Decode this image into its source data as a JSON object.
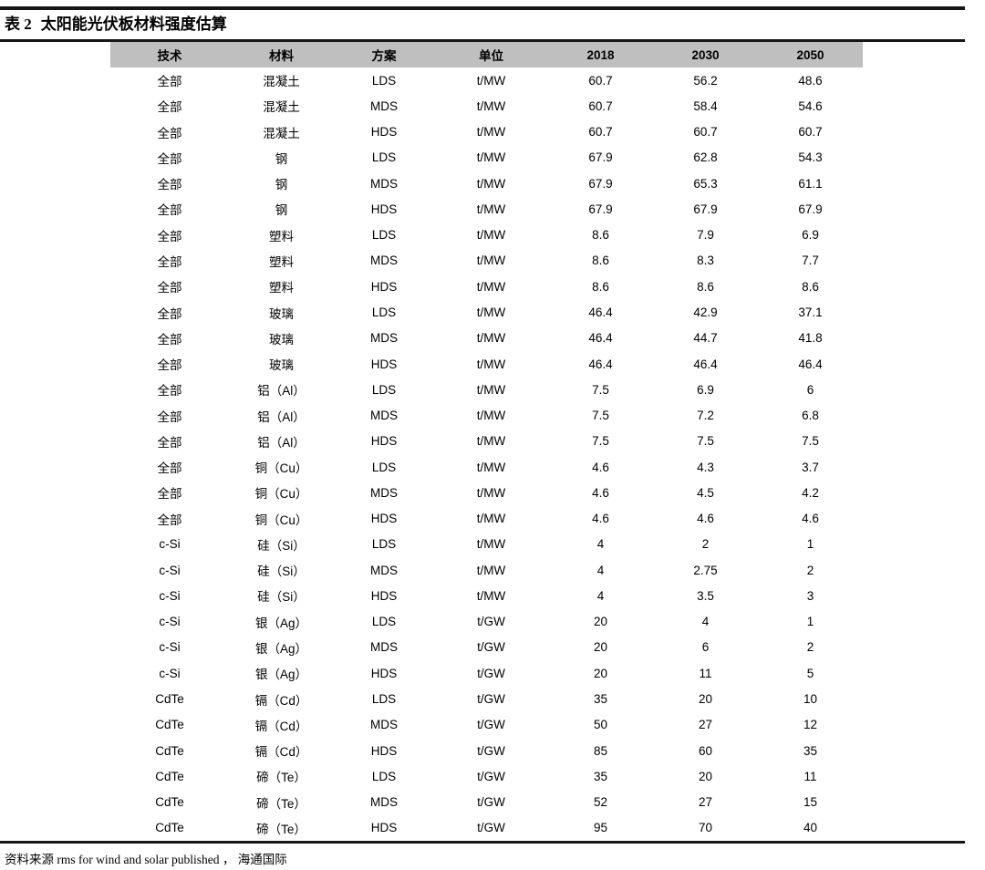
{
  "title": {
    "label": "表 2",
    "text": "太阳能光伏板材料强度估算"
  },
  "table": {
    "columns": [
      "技术",
      "材料",
      "方案",
      "单位",
      "2018",
      "2030",
      "2050"
    ],
    "rows": [
      [
        "全部",
        "混凝土",
        "LDS",
        "t/MW",
        "60.7",
        "56.2",
        "48.6"
      ],
      [
        "全部",
        "混凝土",
        "MDS",
        "t/MW",
        "60.7",
        "58.4",
        "54.6"
      ],
      [
        "全部",
        "混凝土",
        "HDS",
        "t/MW",
        "60.7",
        "60.7",
        "60.7"
      ],
      [
        "全部",
        "钢",
        "LDS",
        "t/MW",
        "67.9",
        "62.8",
        "54.3"
      ],
      [
        "全部",
        "钢",
        "MDS",
        "t/MW",
        "67.9",
        "65.3",
        "61.1"
      ],
      [
        "全部",
        "钢",
        "HDS",
        "t/MW",
        "67.9",
        "67.9",
        "67.9"
      ],
      [
        "全部",
        "塑料",
        "LDS",
        "t/MW",
        "8.6",
        "7.9",
        "6.9"
      ],
      [
        "全部",
        "塑料",
        "MDS",
        "t/MW",
        "8.6",
        "8.3",
        "7.7"
      ],
      [
        "全部",
        "塑料",
        "HDS",
        "t/MW",
        "8.6",
        "8.6",
        "8.6"
      ],
      [
        "全部",
        "玻璃",
        "LDS",
        "t/MW",
        "46.4",
        "42.9",
        "37.1"
      ],
      [
        "全部",
        "玻璃",
        "MDS",
        "t/MW",
        "46.4",
        "44.7",
        "41.8"
      ],
      [
        "全部",
        "玻璃",
        "HDS",
        "t/MW",
        "46.4",
        "46.4",
        "46.4"
      ],
      [
        "全部",
        "铝（Al）",
        "LDS",
        "t/MW",
        "7.5",
        "6.9",
        "6"
      ],
      [
        "全部",
        "铝（Al）",
        "MDS",
        "t/MW",
        "7.5",
        "7.2",
        "6.8"
      ],
      [
        "全部",
        "铝（Al）",
        "HDS",
        "t/MW",
        "7.5",
        "7.5",
        "7.5"
      ],
      [
        "全部",
        "铜（Cu）",
        "LDS",
        "t/MW",
        "4.6",
        "4.3",
        "3.7"
      ],
      [
        "全部",
        "铜（Cu）",
        "MDS",
        "t/MW",
        "4.6",
        "4.5",
        "4.2"
      ],
      [
        "全部",
        "铜（Cu）",
        "HDS",
        "t/MW",
        "4.6",
        "4.6",
        "4.6"
      ],
      [
        "c-Si",
        "硅（Si）",
        "LDS",
        "t/MW",
        "4",
        "2",
        "1"
      ],
      [
        "c-Si",
        "硅（Si）",
        "MDS",
        "t/MW",
        "4",
        "2.75",
        "2"
      ],
      [
        "c-Si",
        "硅（Si）",
        "HDS",
        "t/MW",
        "4",
        "3.5",
        "3"
      ],
      [
        "c-Si",
        "银（Ag）",
        "LDS",
        "t/GW",
        "20",
        "4",
        "1"
      ],
      [
        "c-Si",
        "银（Ag）",
        "MDS",
        "t/GW",
        "20",
        "6",
        "2"
      ],
      [
        "c-Si",
        "银（Ag）",
        "HDS",
        "t/GW",
        "20",
        "11",
        "5"
      ],
      [
        "CdTe",
        "镉（Cd）",
        "LDS",
        "t/GW",
        "35",
        "20",
        "10"
      ],
      [
        "CdTe",
        "镉（Cd）",
        "MDS",
        "t/GW",
        "50",
        "27",
        "12"
      ],
      [
        "CdTe",
        "镉（Cd）",
        "HDS",
        "t/GW",
        "85",
        "60",
        "35"
      ],
      [
        "CdTe",
        "碲（Te）",
        "LDS",
        "t/GW",
        "35",
        "20",
        "11"
      ],
      [
        "CdTe",
        "碲（Te）",
        "MDS",
        "t/GW",
        "52",
        "27",
        "15"
      ],
      [
        "CdTe",
        "碲（Te）",
        "HDS",
        "t/GW",
        "95",
        "70",
        "40"
      ]
    ]
  },
  "footer": {
    "source": "资料来源 rms for wind and solar published ， 海通国际"
  },
  "colors": {
    "header_bg": "#bfbfbf",
    "rule": "#161616",
    "text": "#000000"
  }
}
